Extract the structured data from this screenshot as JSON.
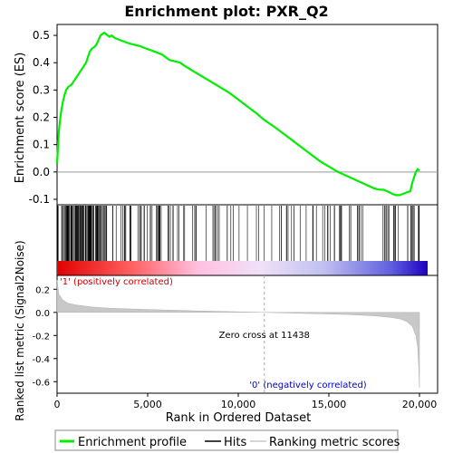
{
  "chart_data": {
    "type": "line",
    "title": "Enrichment plot: PXR_Q2",
    "es_panel": {
      "ylabel": "Enrichment score (ES)",
      "ylim": [
        -0.12,
        0.54
      ],
      "yticks": [
        -0.1,
        0.0,
        0.1,
        0.2,
        0.3,
        0.4,
        0.5
      ],
      "ytick_labels": [
        "-0.1",
        "0.0",
        "0.1",
        "0.2",
        "0.3",
        "0.4",
        "0.5"
      ],
      "series": [
        {
          "name": "Enrichment profile",
          "color": "#00ee00",
          "x": [
            0,
            100,
            200,
            300,
            400,
            500,
            600,
            700,
            800,
            900,
            1000,
            1100,
            1200,
            1300,
            1400,
            1500,
            1600,
            1700,
            1800,
            1900,
            2000,
            2100,
            2200,
            2300,
            2400,
            2500,
            2600,
            2700,
            2800,
            2900,
            3000,
            3100,
            3200,
            3400,
            3600,
            3800,
            4000,
            4300,
            4600,
            4900,
            5200,
            5500,
            5800,
            6000,
            6200,
            6500,
            6800,
            7000,
            7500,
            8000,
            8500,
            9000,
            9500,
            10000,
            10500,
            11000,
            11438,
            12000,
            12500,
            13000,
            13500,
            14000,
            14500,
            15000,
            15500,
            16000,
            16500,
            17000,
            17500,
            17800,
            18000,
            18200,
            18500,
            18700,
            18900,
            19100,
            19300,
            19500,
            19600,
            19700,
            19800,
            19900,
            20000
          ],
          "y": [
            0.03,
            0.15,
            0.21,
            0.25,
            0.28,
            0.3,
            0.31,
            0.315,
            0.32,
            0.33,
            0.34,
            0.35,
            0.36,
            0.37,
            0.38,
            0.39,
            0.4,
            0.42,
            0.44,
            0.45,
            0.455,
            0.46,
            0.47,
            0.485,
            0.5,
            0.505,
            0.51,
            0.505,
            0.5,
            0.495,
            0.5,
            0.495,
            0.49,
            0.485,
            0.48,
            0.475,
            0.47,
            0.465,
            0.46,
            0.452,
            0.445,
            0.438,
            0.43,
            0.42,
            0.41,
            0.405,
            0.4,
            0.39,
            0.37,
            0.35,
            0.33,
            0.31,
            0.29,
            0.265,
            0.24,
            0.215,
            0.19,
            0.165,
            0.14,
            0.115,
            0.09,
            0.065,
            0.04,
            0.02,
            0.0,
            -0.015,
            -0.03,
            -0.045,
            -0.06,
            -0.065,
            -0.065,
            -0.07,
            -0.08,
            -0.085,
            -0.085,
            -0.08,
            -0.075,
            -0.07,
            -0.04,
            -0.02,
            0.0,
            0.01,
            0.005
          ]
        }
      ]
    },
    "hits_panel": {
      "hit_bands": [
        [
          0,
          2700,
          95
        ],
        [
          2700,
          7000,
          45
        ],
        [
          7000,
          12000,
          22
        ],
        [
          12000,
          15000,
          18
        ],
        [
          15000,
          17300,
          16
        ],
        [
          17300,
          19500,
          14
        ],
        [
          19500,
          20000,
          12
        ]
      ],
      "phenotype_pos_label": "'1' (positively correlated)",
      "phenotype_neg_label": "'0' (negatively correlated)"
    },
    "metric_panel": {
      "ylabel": "Ranked list metric (Signal2Noise)",
      "ylim": [
        -0.7,
        0.32
      ],
      "yticks": [
        -0.6,
        -0.4,
        -0.2,
        0.0,
        0.2
      ],
      "ytick_labels": [
        "-0.6",
        "-0.4",
        "-0.2",
        "0.0",
        "0.2"
      ],
      "x": [
        0,
        100,
        300,
        600,
        1000,
        2000,
        3000,
        5000,
        8000,
        11438,
        14000,
        16000,
        17500,
        18500,
        19000,
        19300,
        19600,
        19800,
        19900,
        19950,
        20000
      ],
      "y": [
        0.28,
        0.16,
        0.11,
        0.08,
        0.065,
        0.045,
        0.035,
        0.025,
        0.012,
        0.0,
        -0.01,
        -0.018,
        -0.03,
        -0.045,
        -0.06,
        -0.08,
        -0.12,
        -0.2,
        -0.3,
        -0.45,
        -0.65
      ],
      "zero_cross_label": "Zero cross at 11438",
      "zero_cross_x": 11438
    },
    "xaxis": {
      "xlabel": "Rank in Ordered Dataset",
      "xlim": [
        0,
        21000
      ],
      "xticks": [
        0,
        5000,
        10000,
        15000,
        20000
      ],
      "xtick_labels": [
        "0",
        "5,000",
        "10,000",
        "15,000",
        "20,000"
      ]
    },
    "legend": {
      "placement": "bottom",
      "items": [
        {
          "label": "Enrichment profile",
          "color": "#00ee00"
        },
        {
          "label": "Hits",
          "color": "#000000"
        },
        {
          "label": "Ranking metric scores",
          "color": "#c8c8c8"
        }
      ]
    },
    "colors": {
      "hits_bar_start": "#ff0000",
      "hits_bar_mid": "#ffffff",
      "hits_bar_end": "#0000cc",
      "pos_label": "#cc0000",
      "neg_label": "#0000cc"
    }
  }
}
